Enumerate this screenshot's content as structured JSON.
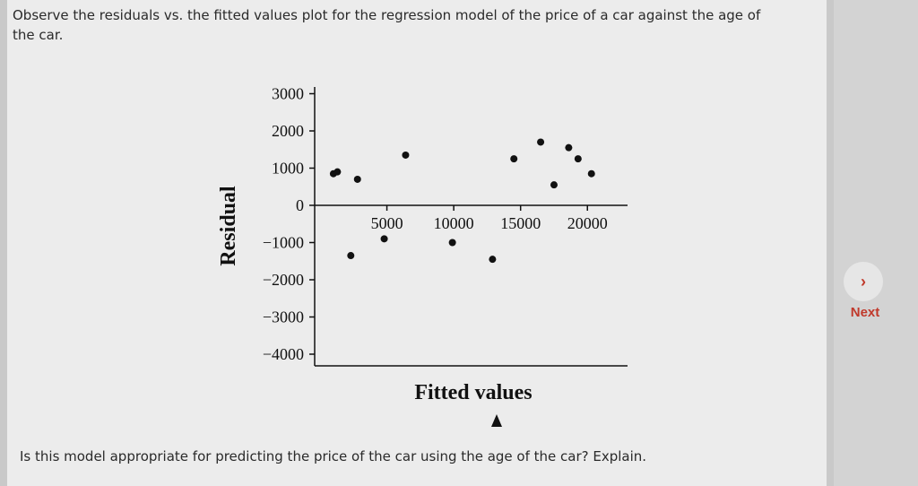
{
  "question": {
    "text": "Observe the residuals vs. the fitted values plot for the regression model of the price of a car against the age of the car.",
    "prompt": "Is this model appropriate for predicting the price of the car using the age of the car? Explain."
  },
  "navigation": {
    "next_icon": "›",
    "next_label": "Next",
    "accent": "#c0392b"
  },
  "chart_data": {
    "type": "scatter",
    "title": "",
    "xlabel": "Fitted values",
    "ylabel": "Residual",
    "xlim": [
      0,
      23000
    ],
    "ylim": [
      -4300,
      3200
    ],
    "x_ticks": [
      5000,
      10000,
      15000,
      20000
    ],
    "x_tick_labels": [
      "5000",
      "10000",
      "15000",
      "20000"
    ],
    "y_ticks": [
      3000,
      2000,
      1000,
      0,
      -1000,
      -2000,
      -3000,
      -4000
    ],
    "y_tick_labels": [
      "3000",
      "2000",
      "1000",
      "0",
      "−1000",
      "−2000",
      "−3000",
      "−4000"
    ],
    "grid": false,
    "points": [
      {
        "x": 1000,
        "y": 850
      },
      {
        "x": 1300,
        "y": 900
      },
      {
        "x": 2300,
        "y": -1350
      },
      {
        "x": 2800,
        "y": 700
      },
      {
        "x": 4800,
        "y": -900
      },
      {
        "x": 6400,
        "y": 1350
      },
      {
        "x": 9900,
        "y": -1000
      },
      {
        "x": 12900,
        "y": -1450
      },
      {
        "x": 14500,
        "y": 1250
      },
      {
        "x": 16500,
        "y": 1700
      },
      {
        "x": 17500,
        "y": 550
      },
      {
        "x": 18600,
        "y": 1550
      },
      {
        "x": 19300,
        "y": 1250
      },
      {
        "x": 20300,
        "y": 850
      }
    ],
    "point_color": "#111111"
  }
}
